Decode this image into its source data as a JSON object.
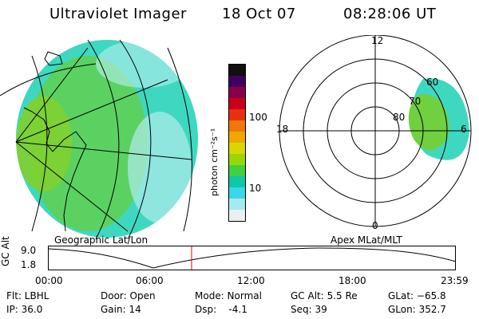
{
  "header": {
    "title": "Ultraviolet Imager",
    "date": "18 Oct 07",
    "time": "08:28:06 UT"
  },
  "geo_panel": {
    "caption": "Geographic Lat/Lon"
  },
  "colorbar": {
    "label": "photon cm⁻²s⁻¹",
    "ticks": [
      "100",
      "10"
    ],
    "colors": [
      "#101010",
      "#400060",
      "#8a0048",
      "#c80018",
      "#e83010",
      "#f07808",
      "#f0a800",
      "#d8d800",
      "#98d800",
      "#40d040",
      "#10c8a8",
      "#38d8e8",
      "#a8e8f0",
      "#e8f0f0"
    ]
  },
  "polar_panel": {
    "caption": "Apex MLat/MLT",
    "mlt_labels": {
      "top": "12",
      "bottom": "0",
      "left": "18",
      "right": "6"
    },
    "lat_labels": [
      "60",
      "70",
      "80"
    ]
  },
  "alt_plot": {
    "ylabel": "GC Alt",
    "yticks": [
      "9.0",
      "1.8"
    ],
    "xticks": [
      "00:00",
      "06:00",
      "12:00",
      "18:00",
      "23:59"
    ],
    "marker_color": "#e00000"
  },
  "info": {
    "flt": "Flt: LBHL",
    "ip": "IP: 36.0",
    "door": "Door: Open",
    "gain": "Gain: 14",
    "mode": "Mode: Normal",
    "dsp": "Dsp:    -4.1",
    "gcalt": "GC Alt: 5.5 Re",
    "seq": "Seq: 39",
    "glat": "GLat: −65.8",
    "glon": "GLon: 352.7"
  }
}
